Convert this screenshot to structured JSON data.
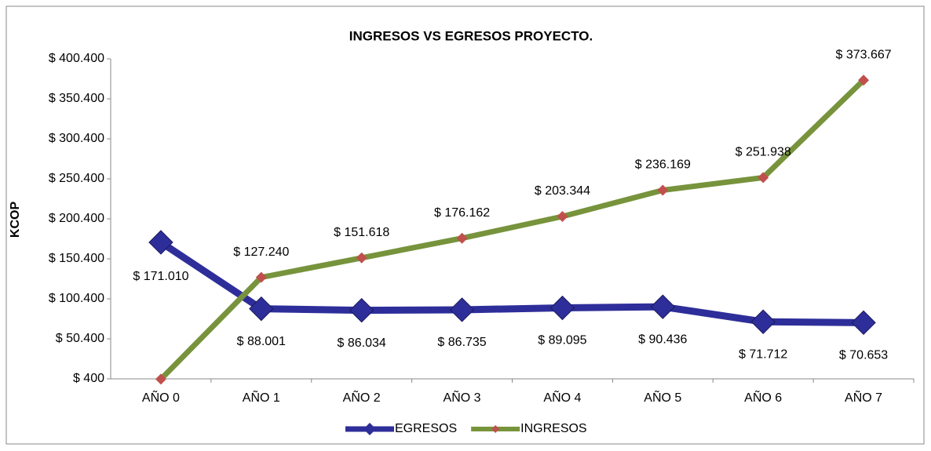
{
  "chart_data": {
    "type": "line",
    "title": "INGRESOS VS EGRESOS PROYECTO.",
    "y_label": "KCOP",
    "categories": [
      "AÑO 0",
      "AÑO 1",
      "AÑO 2",
      "AÑO 3",
      "AÑO 4",
      "AÑO 5",
      "AÑO 6",
      "AÑO 7"
    ],
    "series": [
      {
        "name": "EGRESOS",
        "color": "#2e2e9a",
        "marker_color": "#2e2e9a",
        "values": [
          171010,
          88001,
          86034,
          86735,
          89095,
          90436,
          71712,
          70653
        ],
        "value_labels": [
          "$ 171.010",
          "$ 88.001",
          "$ 86.034",
          "$ 86.735",
          "$ 89.095",
          "$ 90.436",
          "$ 71.712",
          "$ 70.653"
        ]
      },
      {
        "name": "INGRESOS",
        "color": "#77933c",
        "marker_color": "#c0504d",
        "values": [
          0,
          127240,
          151618,
          176162,
          203344,
          236169,
          251938,
          373667
        ],
        "value_labels": [
          null,
          "$ 127.240",
          "$ 151.618",
          "$ 176.162",
          "$ 203.344",
          "$ 236.169",
          "$ 251.938",
          "$ 373.667"
        ]
      }
    ],
    "ylim": [
      400,
      400400
    ],
    "yticks": [
      {
        "value": 400,
        "label": "$ 400"
      },
      {
        "value": 50400,
        "label": "$ 50.400"
      },
      {
        "value": 100400,
        "label": "$ 100.400"
      },
      {
        "value": 150400,
        "label": "$ 150.400"
      },
      {
        "value": 200400,
        "label": "$ 200.400"
      },
      {
        "value": 250400,
        "label": "$ 250.400"
      },
      {
        "value": 300400,
        "label": "$ 300.400"
      },
      {
        "value": 350400,
        "label": "$ 350.400"
      },
      {
        "value": 400400,
        "label": "$ 400.400"
      }
    ],
    "grid": false,
    "legend": "bottom"
  }
}
